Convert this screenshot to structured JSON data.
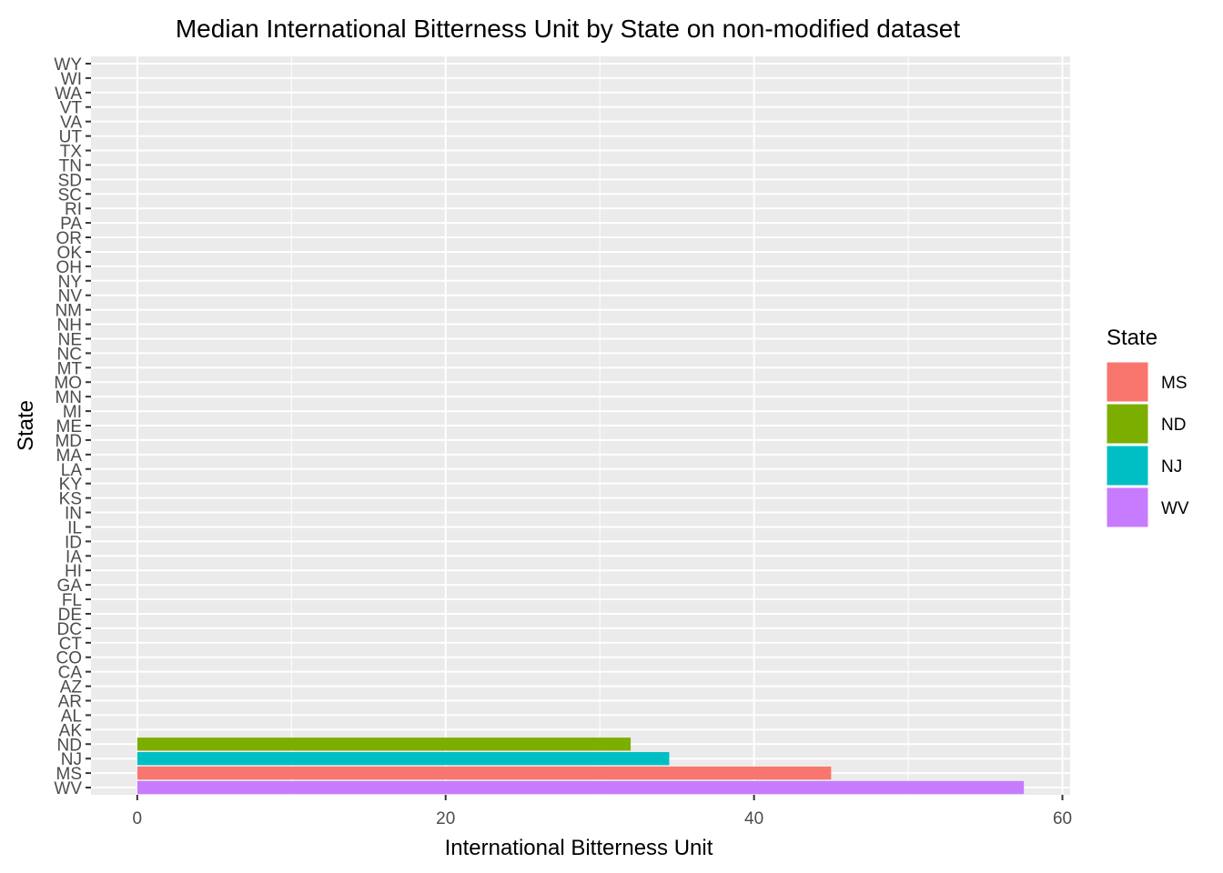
{
  "chart_data": {
    "type": "bar",
    "orientation": "horizontal",
    "title": "Median International Bitterness Unit by State on non-modified dataset",
    "xlabel": "International Bitterness Unit",
    "ylabel": "State",
    "xlim": [
      -3,
      60.5
    ],
    "x_ticks": [
      0,
      20,
      40,
      60
    ],
    "grid": true,
    "categories": [
      "WV",
      "MS",
      "NJ",
      "ND",
      "AK",
      "AL",
      "AR",
      "AZ",
      "CA",
      "CO",
      "CT",
      "DC",
      "DE",
      "FL",
      "GA",
      "HI",
      "IA",
      "ID",
      "IL",
      "IN",
      "KS",
      "KY",
      "LA",
      "MA",
      "MD",
      "ME",
      "MI",
      "MN",
      "MO",
      "MT",
      "NC",
      "NE",
      "NH",
      "NM",
      "NV",
      "NY",
      "OH",
      "OK",
      "OR",
      "PA",
      "RI",
      "SC",
      "SD",
      "TN",
      "TX",
      "UT",
      "VA",
      "VT",
      "WA",
      "WI",
      "WY"
    ],
    "values": [
      57.5,
      45,
      34.5,
      32,
      null,
      null,
      null,
      null,
      null,
      null,
      null,
      null,
      null,
      null,
      null,
      null,
      null,
      null,
      null,
      null,
      null,
      null,
      null,
      null,
      null,
      null,
      null,
      null,
      null,
      null,
      null,
      null,
      null,
      null,
      null,
      null,
      null,
      null,
      null,
      null,
      null,
      null,
      null,
      null,
      null,
      null,
      null,
      null,
      null,
      null,
      null
    ],
    "legend": {
      "title": "State",
      "placement": "right",
      "entries": [
        {
          "label": "MS",
          "color": "#F8766D"
        },
        {
          "label": "ND",
          "color": "#7CAE00"
        },
        {
          "label": "NJ",
          "color": "#00BFC4"
        },
        {
          "label": "WV",
          "color": "#C77CFF"
        }
      ]
    },
    "colors": {
      "panel": "#EBEBEB",
      "grid": "#FFFFFF"
    }
  }
}
